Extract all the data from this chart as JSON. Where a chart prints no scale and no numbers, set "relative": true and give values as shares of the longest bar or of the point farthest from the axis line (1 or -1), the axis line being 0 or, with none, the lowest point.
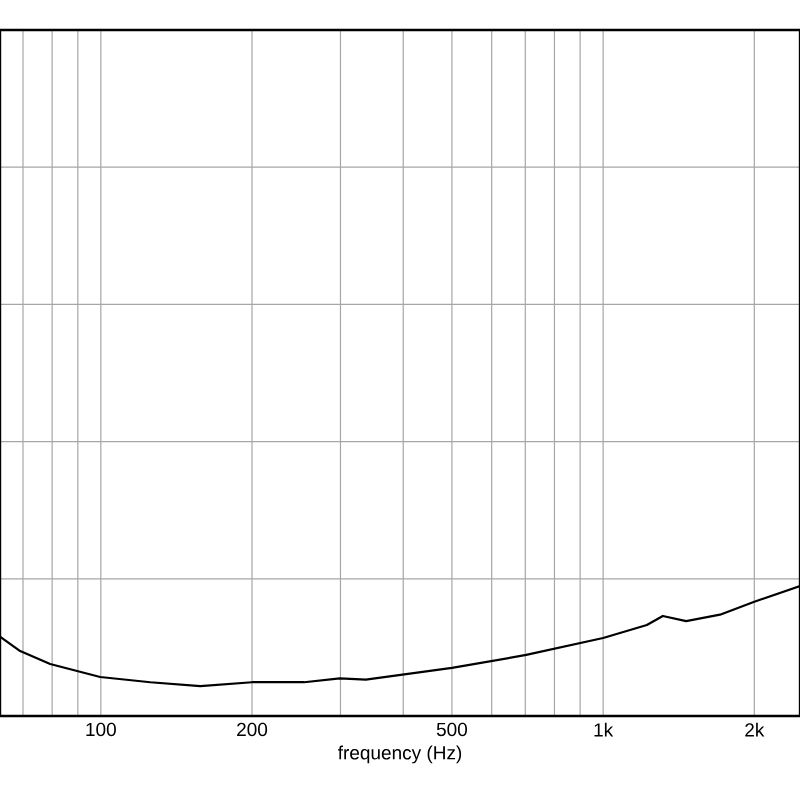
{
  "chart_data": {
    "type": "line",
    "xlabel": "frequency (Hz)",
    "log": "x",
    "relative": true,
    "grid": true,
    "marker": "none",
    "line_style": "solid",
    "xlim": [
      63,
      2466
    ],
    "xticks": [
      {
        "value": 70,
        "label": null
      },
      {
        "value": 80,
        "label": null
      },
      {
        "value": 90,
        "label": null
      },
      100,
      200,
      {
        "value": 300,
        "label": null
      },
      {
        "value": 400,
        "label": null
      },
      500,
      {
        "value": 600,
        "label": null
      },
      {
        "value": 700,
        "label": null
      },
      {
        "value": 800,
        "label": null
      },
      {
        "value": 900,
        "label": null
      },
      {
        "value": 1000,
        "label": "1k"
      },
      {
        "value": 2000,
        "label": "2k"
      }
    ],
    "x": [
      63,
      69.1,
      79.3,
      99.7,
      125.5,
      157.8,
      200,
      254,
      299,
      337,
      500,
      703,
      1000,
      1222,
      1315,
      1463,
      1709,
      2000,
      2466
    ],
    "series": [
      {
        "color": "#000000",
        "values": [
          0.61,
          0.5,
          0.4,
          0.3,
          0.26,
          0.23,
          0.26,
          0.26,
          0.29,
          0.28,
          0.37,
          0.47,
          0.6,
          0.7,
          0.77,
          0.73,
          0.78,
          0.88,
          1.0
        ]
      }
    ]
  }
}
